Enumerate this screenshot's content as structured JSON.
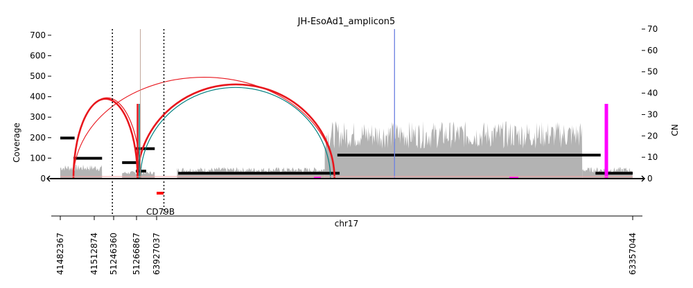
{
  "chart_data": {
    "type": "coverage-breakpoint-plot",
    "title": "JH-EsoAd1_amplicon5",
    "ylabel_left": "Coverage",
    "ylabel_right": "CN",
    "xlabel": "chr17",
    "ylim_left": [
      0,
      730
    ],
    "ylim_right": [
      0,
      70
    ],
    "yticks_left": [
      0,
      100,
      200,
      300,
      400,
      500,
      600,
      700
    ],
    "yticks_right": [
      0,
      10,
      20,
      30,
      40,
      50,
      60,
      70
    ],
    "xticks": [
      "41482367",
      "41512874",
      "51246360",
      "51266867",
      "63927037",
      "63357044"
    ],
    "gene_label": "CD79B",
    "coverage_segments": [
      {
        "start": 0.0,
        "end": 0.073,
        "level": 55
      },
      {
        "start": 0.108,
        "end": 0.165,
        "level": 30
      },
      {
        "start": 0.204,
        "end": 0.462,
        "level": 45
      },
      {
        "start": 0.462,
        "end": 0.912,
        "level": 225
      },
      {
        "start": 0.912,
        "end": 1.0,
        "level": 45
      }
    ],
    "cn_segments": [
      {
        "start": 0.0,
        "end": 0.025,
        "cn": 19
      },
      {
        "start": 0.023,
        "end": 0.073,
        "cn": 9.5
      },
      {
        "start": 0.108,
        "end": 0.135,
        "cn": 7.5
      },
      {
        "start": 0.132,
        "end": 0.15,
        "cn": 3.5
      },
      {
        "start": 0.132,
        "end": 0.165,
        "cn": 14
      },
      {
        "start": 0.206,
        "end": 0.488,
        "cn": 2.5
      },
      {
        "start": 0.484,
        "end": 0.944,
        "cn": 11
      },
      {
        "start": 0.935,
        "end": 1.0,
        "cn": 2.5
      }
    ],
    "breakpoint_arcs": [
      {
        "x1": 0.023,
        "x2": 0.135,
        "height": 390,
        "color": "#e8161d",
        "width": 2.6
      },
      {
        "x1": 0.023,
        "x2": 0.14,
        "height": 395,
        "color": "#e8161d",
        "width": 1.2
      },
      {
        "x1": 0.14,
        "x2": 0.472,
        "height": 445,
        "color": "#008080",
        "width": 1.2
      },
      {
        "x1": 0.135,
        "x2": 0.479,
        "height": 460,
        "color": "#e8161d",
        "width": 2.6
      },
      {
        "x1": 0.023,
        "x2": 0.479,
        "height": 495,
        "color": "#e8161d",
        "width": 1.1
      }
    ],
    "vertical_lines": [
      {
        "x": 0.135,
        "height": 365,
        "color": "#e8161d",
        "width": 2.5
      },
      {
        "x": 0.138,
        "height": 365,
        "color": "#008080",
        "width": 1.5
      },
      {
        "x": 0.14,
        "height": 730,
        "color": "#b09080",
        "width": 0.8
      },
      {
        "x": 0.584,
        "height": 730,
        "color": "#a020f0",
        "width": 1.2
      },
      {
        "x": 0.584,
        "height": 730,
        "color": "#6a8de0",
        "width": 1.2
      },
      {
        "x": 0.954,
        "height": 365,
        "color": "#ff00ff",
        "width": 5
      }
    ],
    "dotted_lines": [
      0.091,
      0.181
    ],
    "colors": {
      "coverage": "#b3b3b3",
      "cn": "#000000",
      "arc_red": "#e8161d",
      "arc_teal": "#008080",
      "magenta": "#ff00ff",
      "gene": "#ff0000"
    },
    "grid": false
  }
}
